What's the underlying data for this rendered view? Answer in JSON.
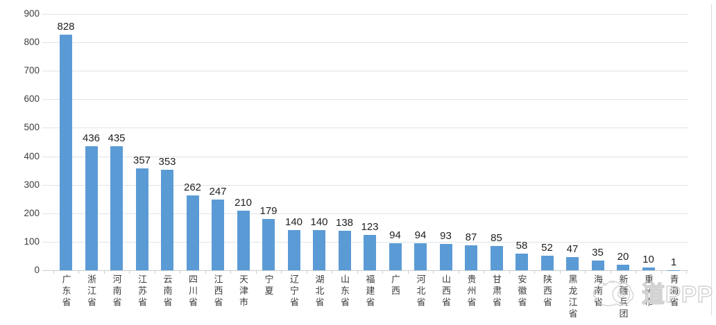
{
  "chart_data": {
    "type": "bar",
    "title": "",
    "xlabel": "",
    "ylabel": "",
    "categories": [
      "广东省",
      "浙江省",
      "河南省",
      "江苏省",
      "云南省",
      "四川省",
      "江西省",
      "天津市",
      "宁夏",
      "辽宁省",
      "湖北省",
      "山东省",
      "福建省",
      "广西",
      "河北省",
      "山西省",
      "贵州省",
      "甘肃省",
      "安徽省",
      "陕西省",
      "黑龙江省",
      "海南省",
      "新疆兵团",
      "重庆市",
      "青海省"
    ],
    "values": [
      828,
      436,
      435,
      357,
      353,
      262,
      247,
      210,
      179,
      140,
      140,
      138,
      123,
      94,
      94,
      93,
      87,
      85,
      58,
      52,
      47,
      35,
      20,
      10,
      1
    ],
    "ylim": [
      0,
      900
    ],
    "yticks": [
      0,
      100,
      200,
      300,
      400,
      500,
      600,
      700,
      800,
      900
    ],
    "grid": "horizontal",
    "legend": "none",
    "value_labels": "above-bars",
    "x_label_orientation": "vertical-upright"
  },
  "watermark": {
    "logo": "panda-cloud-logo",
    "text": "道PPP"
  },
  "colors": {
    "bar": "#5b9bd5",
    "gridline": "#dde4e8",
    "axis_line": "#c6cdd1",
    "value_label_text": "#1e1e1e",
    "axis_label_text": "#3d3d3d",
    "watermark": "#d2d2d2"
  }
}
